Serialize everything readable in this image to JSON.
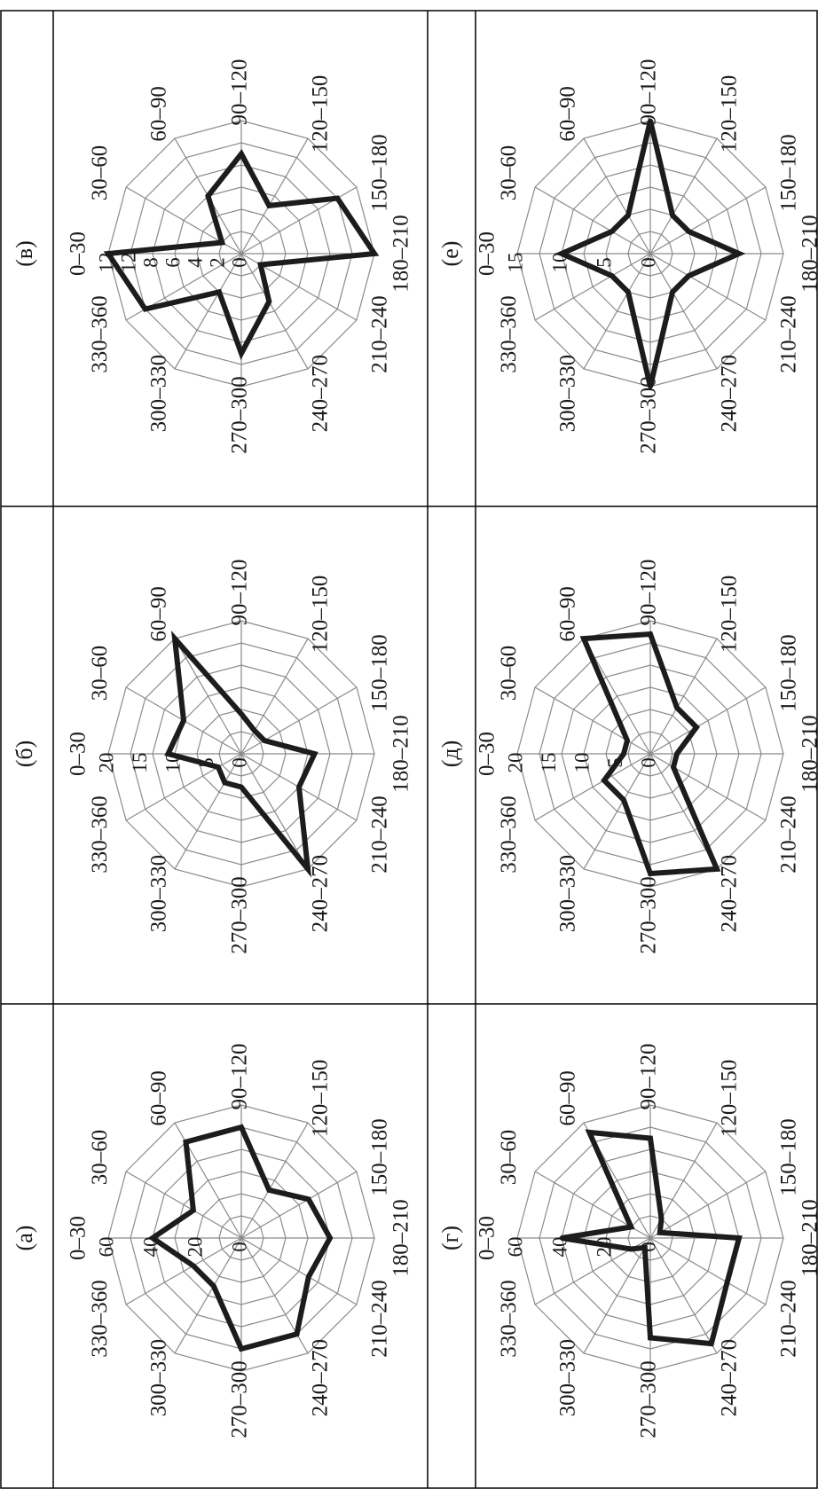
{
  "chart_data": [
    {
      "type": "radar",
      "label": "(а)",
      "categories": [
        "0–30",
        "30–60",
        "60–90",
        "90–120",
        "120–150",
        "150–180",
        "180–210",
        "210–240",
        "240–270",
        "270–300",
        "300–330",
        "330–360"
      ],
      "radial_ticks": [
        "0",
        "20",
        "40",
        "60"
      ],
      "rmax": 60,
      "values": [
        40,
        25,
        50,
        50,
        25,
        35,
        40,
        35,
        50,
        50,
        25,
        25
      ]
    },
    {
      "type": "radar",
      "label": "(б)",
      "categories": [
        "0–30",
        "30–60",
        "60–90",
        "90–120",
        "120–150",
        "150–180",
        "180–210",
        "210–240",
        "240–270",
        "270–300",
        "300–330",
        "330–360"
      ],
      "radial_ticks": [
        "0",
        "5",
        "10",
        "15",
        "20"
      ],
      "rmax": 20,
      "values": [
        11,
        10,
        20,
        6,
        4,
        4,
        11,
        10,
        20,
        5,
        5,
        4
      ]
    },
    {
      "type": "radar",
      "label": "(в)",
      "categories": [
        "0–30",
        "30–60",
        "60–90",
        "90–120",
        "120–150",
        "150–180",
        "180–210",
        "210–240",
        "240–270",
        "270–300",
        "300–330",
        "330–360"
      ],
      "radial_ticks": [
        "0",
        "2",
        "4",
        "6",
        "8",
        "12",
        "12"
      ],
      "rmax": 12,
      "values": [
        12,
        2,
        6,
        9,
        5,
        10,
        12,
        2,
        5,
        9,
        4,
        10
      ]
    },
    {
      "type": "radar",
      "label": "(г)",
      "categories": [
        "0–30",
        "30–60",
        "60–90",
        "90–120",
        "120–150",
        "150–180",
        "180–210",
        "210–240",
        "240–270",
        "270–300",
        "300–330",
        "330–360"
      ],
      "radial_ticks": [
        "0",
        "20",
        "40",
        "60"
      ],
      "rmax": 60,
      "values": [
        40,
        10,
        55,
        45,
        10,
        5,
        40,
        40,
        55,
        45,
        5,
        10
      ]
    },
    {
      "type": "radar",
      "label": "(д)",
      "categories": [
        "0–30",
        "30–60",
        "60–90",
        "90–120",
        "120–150",
        "150–180",
        "180–210",
        "210–240",
        "240–270",
        "270–300",
        "300–330",
        "330–360"
      ],
      "radial_ticks": [
        "0",
        "5",
        "10",
        "15",
        "20"
      ],
      "rmax": 20,
      "values": [
        4,
        4,
        20,
        18,
        8,
        8,
        4,
        4,
        20,
        18,
        8,
        8
      ]
    },
    {
      "type": "radar",
      "label": "(е)",
      "categories": [
        "0–30",
        "30–60",
        "60–90",
        "90–120",
        "120–150",
        "150–180",
        "180–210",
        "210–240",
        "240–270",
        "270–300",
        "300–330",
        "330–360"
      ],
      "radial_ticks": [
        "0",
        "5",
        "10",
        "15"
      ],
      "rmax": 15,
      "values": [
        10,
        5,
        5,
        15,
        5,
        5,
        10,
        5,
        5,
        15,
        5,
        5
      ]
    }
  ]
}
